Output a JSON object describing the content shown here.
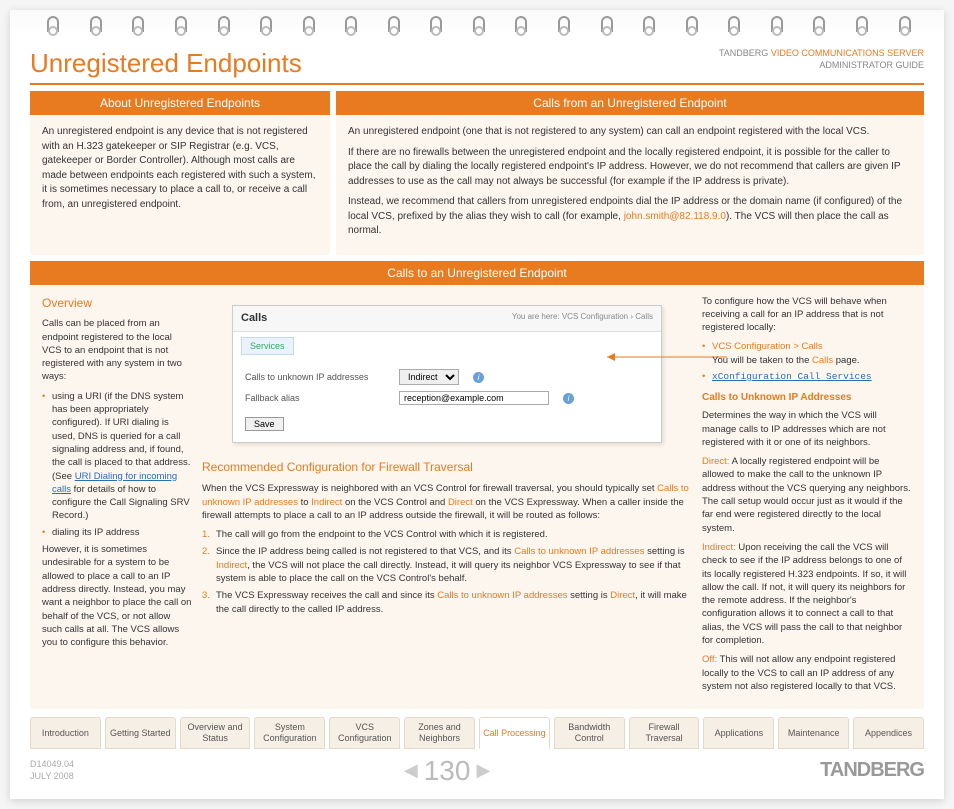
{
  "header": {
    "title": "Unregistered Endpoints",
    "brand": "TANDBERG",
    "product": "VIDEO COMMUNICATIONS SERVER",
    "guide": "ADMINISTRATOR GUIDE"
  },
  "about": {
    "heading": "About Unregistered Endpoints",
    "p1": "An unregistered endpoint is any device that is not registered with an H.323 gatekeeper or SIP Registrar (e.g. VCS, gatekeeper or Border Controller).  Although most calls are made between endpoints each registered with such a system, it is sometimes necessary to place a call to, or receive a call from, an unregistered endpoint."
  },
  "callsFrom": {
    "heading": "Calls from an Unregistered Endpoint",
    "p1": "An unregistered endpoint (one that is not registered to any system) can call an endpoint registered with the local VCS.",
    "p2a": "If there are no firewalls between the unregistered endpoint and the locally registered endpoint, it is possible for the caller to place the call by dialing the locally registered endpoint's IP address. However, we do not recommend that callers are given IP addresses to use as the call may not always be successful (for example if the IP address is private).",
    "p3a": "Instead, we recommend that callers from unregistered endpoints dial the IP address or the domain name (if configured) of the local VCS, prefixed by the alias they wish to call (for example, ",
    "p3link": "john.smith@82.118.9.0",
    "p3b": ").  The VCS will then place the call as normal."
  },
  "callsTo": {
    "heading": "Calls to an Unregistered Endpoint"
  },
  "overview": {
    "heading": "Overview",
    "intro": "Calls can be placed from an endpoint registered to the local VCS to an endpoint that is not registered with any system in two ways:",
    "b1a": "using a URI (if the DNS system has been appropriately configured). If URI dialing is used, DNS is queried for a call signaling address and, if found, the call is placed to that address. (See ",
    "b1link": "URI Dialing for incoming calls",
    "b1b": " for details of how to configure the Call Signaling SRV Record.)",
    "b2": "dialing its IP address",
    "outro": "However, it is sometimes undesirable for a system to be allowed to place a call to an IP address directly. Instead, you may want a neighbor to place the call on behalf of the VCS, or not allow such calls at all.  The VCS allows you to configure this behavior."
  },
  "screenshot": {
    "title": "Calls",
    "breadcrumb": "You are here: VCS Configuration › Calls",
    "tab": "Services",
    "row1label": "Calls to unknown IP addresses",
    "row1value": "Indirect",
    "row2label": "Fallback alias",
    "row2value": "reception@example.com",
    "save": "Save"
  },
  "recommended": {
    "heading": "Recommended Configuration for Firewall Traversal",
    "intro1": "When the VCS Expressway is neighbored with an VCS Control for firewall traversal, you should typically set ",
    "t1": "Calls to unknown IP addresses",
    "intro2": " to ",
    "t2": "Indirect",
    "intro3": " on the VCS Control and ",
    "t3": "Direct",
    "intro4": " on the VCS Expressway. When a caller inside the firewall attempts to place a call to an IP address outside the firewall, it will be routed as follows:",
    "li1": "The call will go from the endpoint to the VCS Control with which it is registered.",
    "li2a": "Since the IP address being called is not registered to that VCS, and its ",
    "li2t": "Calls to unknown IP addresses",
    "li2b": " setting is ",
    "li2t2": "Indirect",
    "li2c": ", the VCS will not place the call directly.  Instead, it will query its neighbor VCS Expressway to see if that system is able to place the call on the VCS Control's behalf.",
    "li3a": "The VCS Expressway receives the call and since its ",
    "li3t": "Calls to unknown IP addresses",
    "li3b": " setting is ",
    "li3t2": "Direct",
    "li3c": ", it will make the call directly to the called IP address."
  },
  "rightcol": {
    "intro": "To configure how the VCS will behave when receiving a call for an IP address that is not registered locally:",
    "nav1": "VCS Configuration > Calls",
    "nav1b": "You will be taken to the ",
    "nav1link": "Calls",
    "nav1c": " page.",
    "nav2": "xConfiguration Call Services",
    "sub": "Calls to Unknown IP Addresses",
    "desc": "Determines the way in which the VCS will manage calls to IP addresses which are not registered with it or one of its neighbors.",
    "direct_t": "Direct:",
    "direct": " A locally registered endpoint will be allowed to make the call to the unknown IP address without the VCS querying any neighbors. The call setup would occur just as it would if the far end were registered directly to the local system.",
    "indirect_t": "Indirect:",
    "indirect": " Upon receiving the call the VCS will check to see if the IP address belongs to one of its locally registered H.323 endpoints. If so, it will allow the call. If not, it will query its neighbors for the remote address.  If the neighbor's configuration allows it to connect a call to that alias, the VCS will pass the call to that neighbor for completion.",
    "off_t": "Off:",
    "off": " This will not allow any endpoint registered locally to the VCS to call an IP address of any system not also registered locally to that VCS."
  },
  "tabs": [
    "Introduction",
    "Getting Started",
    "Overview and Status",
    "System Configuration",
    "VCS Configuration",
    "Zones and Neighbors",
    "Call Processing",
    "Bandwidth Control",
    "Firewall Traversal",
    "Applications",
    "Maintenance",
    "Appendices"
  ],
  "activeTab": 6,
  "footer": {
    "docid": "D14049.04",
    "date": "JULY 2008",
    "page": "130",
    "brand": "TANDBERG"
  }
}
